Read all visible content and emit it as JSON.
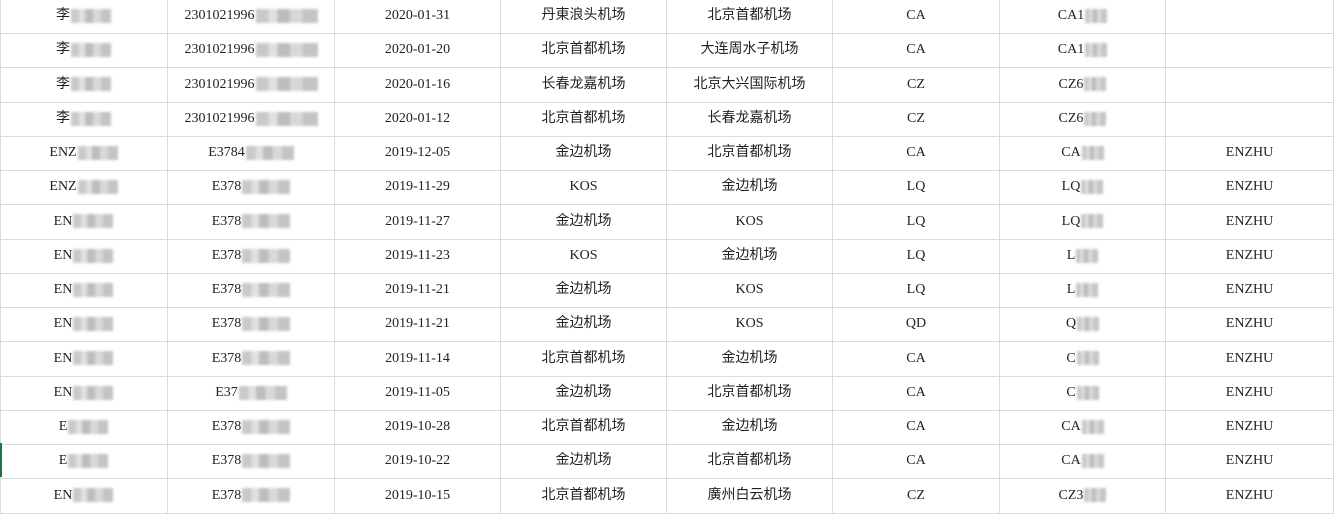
{
  "columns_count": 8,
  "rows": [
    {
      "name": "李",
      "id": "2301021996",
      "date": "2020-01-31",
      "from": "丹東浪头机场",
      "to": "北京首都机场",
      "airline": "CA",
      "flight": "CA1",
      "pax": ""
    },
    {
      "name": "李",
      "id": "2301021996",
      "date": "2020-01-20",
      "from": "北京首都机场",
      "to": "大连周水子机场",
      "airline": "CA",
      "flight": "CA1",
      "pax": ""
    },
    {
      "name": "李",
      "id": "2301021996",
      "date": "2020-01-16",
      "from": "长春龙嘉机场",
      "to": "北京大兴国际机场",
      "airline": "CZ",
      "flight": "CZ6",
      "pax": ""
    },
    {
      "name": "李",
      "id": "2301021996",
      "date": "2020-01-12",
      "from": "北京首都机场",
      "to": "长春龙嘉机场",
      "airline": "CZ",
      "flight": "CZ6",
      "pax": ""
    },
    {
      "name": "ENZ",
      "id": "E3784",
      "date": "2019-12-05",
      "from": "金边机场",
      "to": "北京首都机场",
      "airline": "CA",
      "flight": "CA",
      "pax": "ENZHU"
    },
    {
      "name": "ENZ",
      "id": "E378",
      "date": "2019-11-29",
      "from": "KOS",
      "to": "金边机场",
      "airline": "LQ",
      "flight": "LQ",
      "pax": "ENZHU"
    },
    {
      "name": "EN",
      "id": "E378",
      "date": "2019-11-27",
      "from": "金边机场",
      "to": "KOS",
      "airline": "LQ",
      "flight": "LQ",
      "pax": "ENZHU"
    },
    {
      "name": "EN",
      "id": "E378",
      "date": "2019-11-23",
      "from": "KOS",
      "to": "金边机场",
      "airline": "LQ",
      "flight": "L",
      "pax": "ENZHU"
    },
    {
      "name": "EN",
      "id": "E378",
      "date": "2019-11-21",
      "from": "金边机场",
      "to": "KOS",
      "airline": "LQ",
      "flight": "L",
      "pax": "ENZHU"
    },
    {
      "name": "EN",
      "id": "E378",
      "date": "2019-11-21",
      "from": "金边机场",
      "to": "KOS",
      "airline": "QD",
      "flight": "Q",
      "pax": "ENZHU"
    },
    {
      "name": "EN",
      "id": "E378",
      "date": "2019-11-14",
      "from": "北京首都机场",
      "to": "金边机场",
      "airline": "CA",
      "flight": "C",
      "pax": "ENZHU"
    },
    {
      "name": "EN",
      "id": "E37",
      "date": "2019-11-05",
      "from": "金边机场",
      "to": "北京首都机场",
      "airline": "CA",
      "flight": "C",
      "pax": "ENZHU"
    },
    {
      "name": "E",
      "id": "E378",
      "date": "2019-10-28",
      "from": "北京首都机场",
      "to": "金边机场",
      "airline": "CA",
      "flight": "CA",
      "pax": "ENZHU"
    },
    {
      "name": "E",
      "id": "E378",
      "date": "2019-10-22",
      "from": "金边机场",
      "to": "北京首都机场",
      "airline": "CA",
      "flight": "CA",
      "pax": "ENZHU"
    },
    {
      "name": "EN",
      "id": "E378",
      "date": "2019-10-15",
      "from": "北京首都机场",
      "to": "廣州白云机场",
      "airline": "CZ",
      "flight": "CZ3",
      "pax": "ENZHU"
    }
  ],
  "colors": {
    "grid": "#dcdcdc",
    "selection": "#217346"
  }
}
